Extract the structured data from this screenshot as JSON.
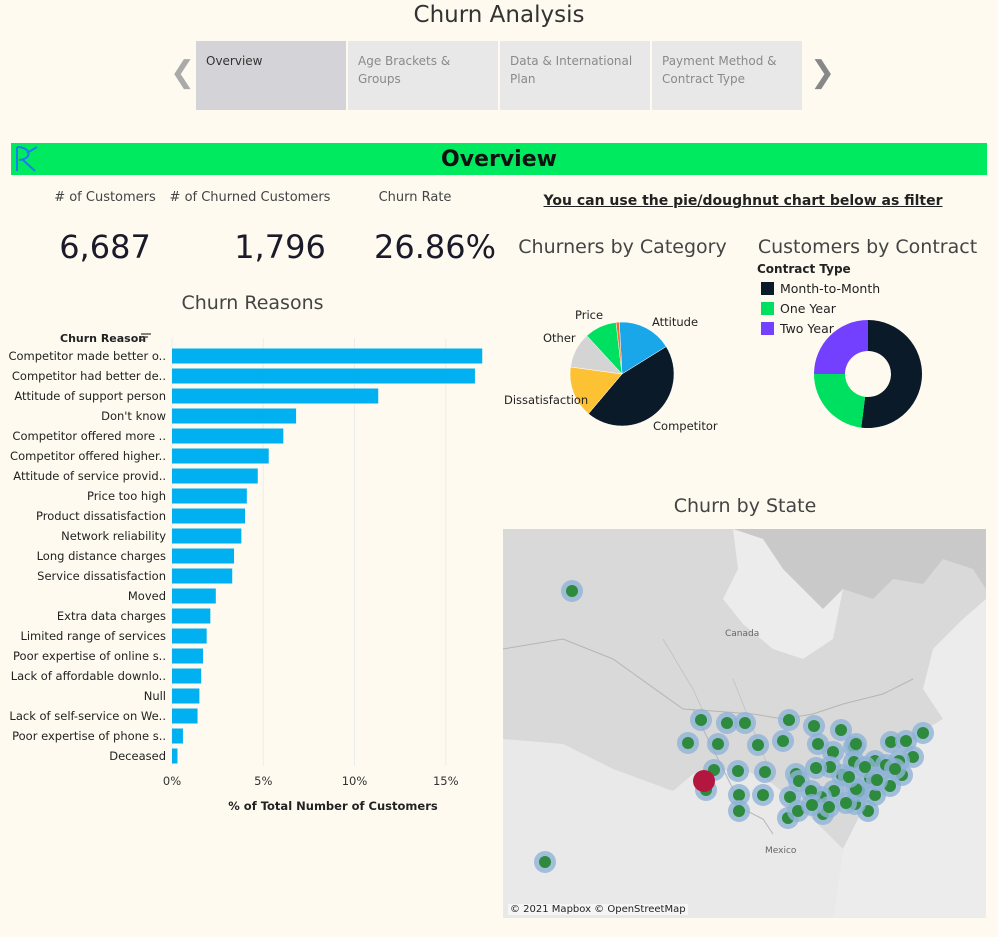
{
  "app": {
    "title": "Churn Analysis"
  },
  "nav": {
    "prev_icon": "chevron-left-icon",
    "next_icon": "chevron-right-icon",
    "tabs": [
      {
        "label": "Overview",
        "active": true
      },
      {
        "label": "Age Brackets & Groups",
        "active": false
      },
      {
        "label": "Data & International Plan",
        "active": false
      },
      {
        "label": "Payment Method & Contract Type",
        "active": false
      }
    ]
  },
  "banner": {
    "title": "Overview",
    "color": "#00ea60"
  },
  "kpis": [
    {
      "label": "# of Customers",
      "value": "6,687"
    },
    {
      "label": "# of Churned Customers",
      "value": "1,796"
    },
    {
      "label": "Churn Rate",
      "value": "26.86%"
    }
  ],
  "filter_hint": "You can use the pie/doughnut chart below as filter",
  "chart_data": [
    {
      "type": "bar",
      "orientation": "horizontal",
      "title": "Churn Reasons",
      "category_header": "Churn Reason",
      "xlabel": "% of Total Number of Customers",
      "xlim": [
        0,
        18
      ],
      "xticks": [
        0,
        5,
        10,
        15
      ],
      "xtick_labels": [
        "0%",
        "5%",
        "10%",
        "15%"
      ],
      "color": "#00b0f0",
      "categories": [
        "Competitor made better o..",
        "Competitor had better de..",
        "Attitude of support person",
        "Don't know",
        "Competitor offered more ..",
        "Competitor offered higher..",
        "Attitude of service provid..",
        "Price too high",
        "Product dissatisfaction",
        "Network reliability",
        "Long distance charges",
        "Service dissatisfaction",
        "Moved",
        "Extra data charges",
        "Limited range of services",
        "Poor expertise of online s..",
        "Lack of affordable downlo..",
        "Null",
        "Lack of self-service on We..",
        "Poor expertise of phone s..",
        "Deceased"
      ],
      "values": [
        17.0,
        16.6,
        11.3,
        6.8,
        6.1,
        5.3,
        4.7,
        4.1,
        4.0,
        3.8,
        3.4,
        3.3,
        2.4,
        2.1,
        1.9,
        1.7,
        1.6,
        1.5,
        1.4,
        0.6,
        0.3
      ]
    },
    {
      "type": "pie",
      "title": "Churners by Category",
      "labels": [
        "Attitude",
        "Competitor",
        "Dissatisfaction",
        "Other",
        "Price"
      ],
      "values": [
        17,
        45,
        16,
        11,
        10
      ],
      "extra_slice": {
        "value": 1,
        "color": "#f26b2a"
      },
      "colors": [
        "#1aa7ea",
        "#0b1a28",
        "#fdc134",
        "#d4d4d4",
        "#00e060"
      ]
    },
    {
      "type": "pie",
      "subtype": "doughnut",
      "title": "Customers by Contract",
      "legend_title": "Contract Type",
      "labels": [
        "Month-to-Month",
        "One Year",
        "Two Year"
      ],
      "values": [
        52,
        23,
        25
      ],
      "colors": [
        "#0b1a28",
        "#00e060",
        "#7340ff"
      ]
    }
  ],
  "map": {
    "title": "Churn by State",
    "attribution": "© 2021 Mapbox © OpenStreetMap",
    "labels": {
      "canada": "Canada",
      "mexico": "Mexico"
    },
    "colors": {
      "halo": "#8fb3d6",
      "dot": "#2e8b3e",
      "highlight": "#b31740"
    }
  }
}
